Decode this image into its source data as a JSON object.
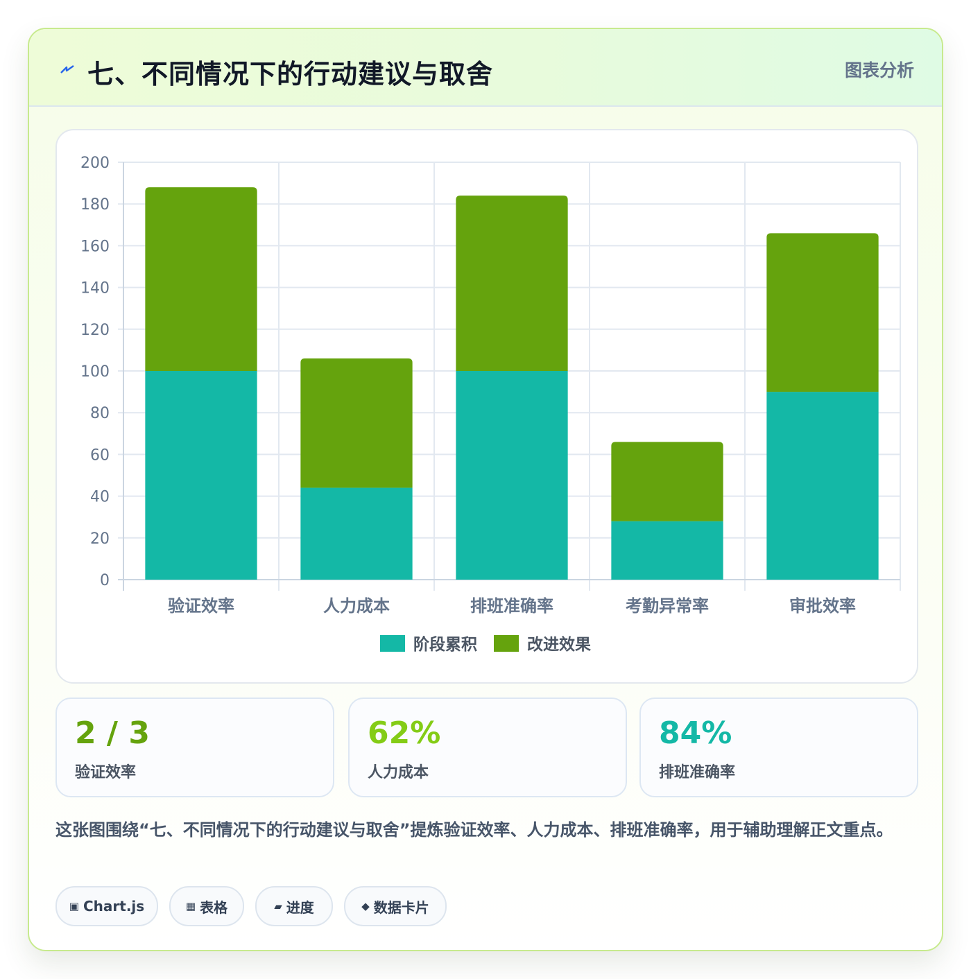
{
  "header": {
    "title": "七、不同情况下的行动建议与取舍",
    "badge": "图表分析"
  },
  "chart_data": {
    "type": "bar",
    "stacked": true,
    "categories": [
      "验证效率",
      "人力成本",
      "排班准确率",
      "考勤异常率",
      "审批效率"
    ],
    "series": [
      {
        "name": "阶段累积",
        "color": "#14b8a6",
        "values": [
          100,
          44,
          100,
          28,
          90
        ]
      },
      {
        "name": "改进效果",
        "color": "#65a30d",
        "values": [
          88,
          62,
          84,
          38,
          76
        ]
      }
    ],
    "ylim": [
      0,
      200
    ],
    "yticks": [
      0,
      20,
      40,
      60,
      80,
      100,
      120,
      140,
      160,
      180,
      200
    ],
    "grid": true,
    "legend_position": "bottom"
  },
  "stats": [
    {
      "value": "2 / 3",
      "label": "验证效率",
      "color": "#65a30d"
    },
    {
      "value": "62%",
      "label": "人力成本",
      "color": "#84cc16"
    },
    {
      "value": "84%",
      "label": "排班准确率",
      "color": "#14b8a6"
    }
  ],
  "description": "这张图围绕“七、不同情况下的行动建议与取舍”提炼验证效率、人力成本、排班准确率，用于辅助理解正文重点。",
  "tags": [
    {
      "icon": "▣",
      "label": "Chart.js"
    },
    {
      "icon": "▦",
      "label": "表格"
    },
    {
      "icon": "▰",
      "label": "进度"
    },
    {
      "icon": "◆",
      "label": "数据卡片"
    }
  ]
}
